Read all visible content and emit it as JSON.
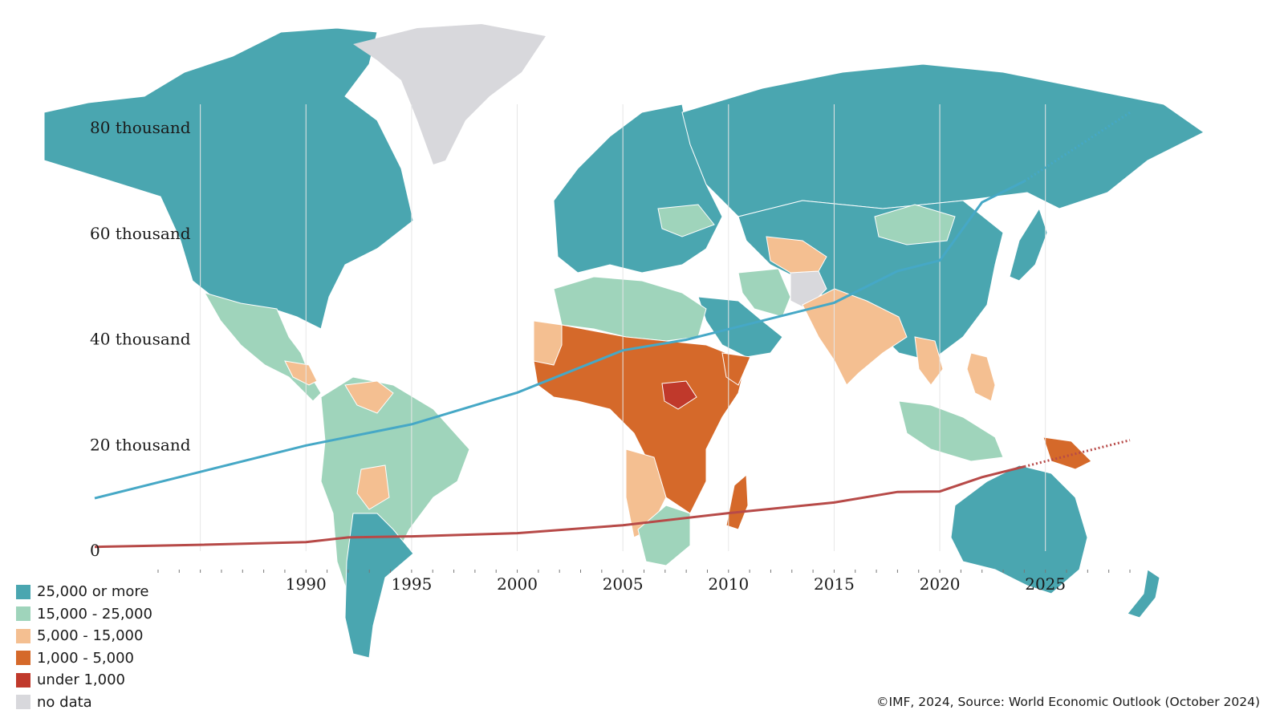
{
  "colors": {
    "c25k": "#4aa6b0",
    "c15k": "#9fd4bb",
    "c5k": "#f4bf91",
    "c1k": "#d5692a",
    "cunder": "#c0392b",
    "cnodata": "#d8d8dc",
    "line_high": "#46a8c6",
    "line_low": "#b74a48"
  },
  "legend": [
    {
      "label": "25,000 or more",
      "color_key": "c25k"
    },
    {
      "label": "15,000 - 25,000",
      "color_key": "c15k"
    },
    {
      "label": "5,000 - 15,000",
      "color_key": "c5k"
    },
    {
      "label": "1,000 - 5,000",
      "color_key": "c1k"
    },
    {
      "label": "under 1,000",
      "color_key": "cunder"
    },
    {
      "label": "no data",
      "color_key": "cnodata"
    }
  ],
  "credit": "©IMF, 2024, Source: World Economic Outlook (October 2024)",
  "chart_data": {
    "type": "line",
    "x_ticks": [
      1990,
      1995,
      2000,
      2005,
      2010,
      2015,
      2020,
      2025
    ],
    "x_tick_labels": [
      "1990",
      "1995",
      "2000",
      "2005",
      "2010",
      "2015",
      "2020",
      "2025"
    ],
    "xlim": [
      1980,
      2029
    ],
    "y_ticks": [
      0,
      20000,
      40000,
      60000,
      80000
    ],
    "y_tick_labels": [
      "0",
      "20 thousand",
      "40 thousand",
      "60 thousand",
      "80 thousand"
    ],
    "ylim": [
      0,
      80000
    ],
    "projection_start": 2024,
    "series": [
      {
        "color_key": "line_high",
        "x": [
          1980,
          1985,
          1990,
          1995,
          2000,
          2005,
          2008,
          2010,
          2015,
          2018,
          2020,
          2022,
          2024,
          2029
        ],
        "y": [
          10000,
          15000,
          20000,
          24000,
          30000,
          38000,
          40000,
          42000,
          47000,
          53000,
          55000,
          66000,
          70000,
          83000
        ]
      },
      {
        "color_key": "line_low",
        "x": [
          1980,
          1985,
          1990,
          1992,
          1995,
          2000,
          2005,
          2010,
          2015,
          2018,
          2020,
          2022,
          2024,
          2029
        ],
        "y": [
          800,
          1200,
          1700,
          2600,
          2800,
          3400,
          4900,
          7200,
          9200,
          11200,
          11300,
          14000,
          16000,
          21000
        ]
      }
    ]
  }
}
